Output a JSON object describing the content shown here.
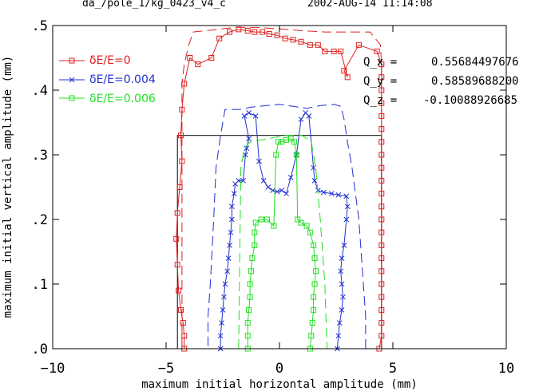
{
  "header": {
    "run_name": "da_/pole_1/kg_0423_v4_c",
    "timestamp": "2002-AUG-14  11:14:08"
  },
  "annotations": [
    {
      "label": "Q_x =",
      "value": "0.55684497676"
    },
    {
      "label": "Q_y =",
      "value": "0.58589688200"
    },
    {
      "label": "Q_z =",
      "value": "-0.10088926685"
    }
  ],
  "chart_data": {
    "type": "line",
    "xlabel": "maximum initial horizontal amplitude (mm)",
    "ylabel": "maximum initial vertical amplitude (mm)",
    "xlim": [
      -10,
      10
    ],
    "ylim": [
      0,
      0.5
    ],
    "x_ticks": [
      -10,
      -5,
      0,
      5,
      10
    ],
    "x_tick_labels": [
      "−10",
      "−5",
      "0",
      "5",
      "10"
    ],
    "y_ticks": [
      0,
      0.1,
      0.2,
      0.3,
      0.4,
      0.5
    ],
    "y_tick_labels": [
      ".0",
      ".1",
      ".2",
      ".3",
      ".4",
      ".5"
    ],
    "grid": false,
    "legend_position": "top-left",
    "series": [
      {
        "name": "δE/E=0",
        "color": "#e02020",
        "marker": "square",
        "points": [
          [
            4.4,
            0
          ],
          [
            4.5,
            0.02
          ],
          [
            4.5,
            0.04
          ],
          [
            4.5,
            0.06
          ],
          [
            4.5,
            0.08
          ],
          [
            4.5,
            0.1
          ],
          [
            4.5,
            0.12
          ],
          [
            4.5,
            0.14
          ],
          [
            4.5,
            0.16
          ],
          [
            4.5,
            0.18
          ],
          [
            4.5,
            0.2
          ],
          [
            4.5,
            0.22
          ],
          [
            4.5,
            0.24
          ],
          [
            4.5,
            0.26
          ],
          [
            4.5,
            0.28
          ],
          [
            4.5,
            0.3
          ],
          [
            4.5,
            0.32
          ],
          [
            4.5,
            0.34
          ],
          [
            4.5,
            0.36
          ],
          [
            4.5,
            0.38
          ],
          [
            4.5,
            0.4
          ],
          [
            4.5,
            0.42
          ],
          [
            4.5,
            0.44
          ],
          [
            4.3,
            0.46
          ],
          [
            3.5,
            0.47
          ],
          [
            2.85,
            0.43
          ],
          [
            3.0,
            0.42
          ],
          [
            2.7,
            0.46
          ],
          [
            2.4,
            0.46
          ],
          [
            2.0,
            0.46
          ],
          [
            1.7,
            0.47
          ],
          [
            1.35,
            0.47
          ],
          [
            0.95,
            0.475
          ],
          [
            0.6,
            0.478
          ],
          [
            0.25,
            0.48
          ],
          [
            -0.1,
            0.485
          ],
          [
            -0.45,
            0.487
          ],
          [
            -0.75,
            0.49
          ],
          [
            -1.1,
            0.49
          ],
          [
            -1.4,
            0.492
          ],
          [
            -1.8,
            0.494
          ],
          [
            -2.2,
            0.49
          ],
          [
            -2.65,
            0.48
          ],
          [
            -3.0,
            0.45
          ],
          [
            -3.6,
            0.44
          ],
          [
            -3.95,
            0.45
          ],
          [
            -4.2,
            0.41
          ],
          [
            -4.3,
            0.37
          ],
          [
            -4.35,
            0.33
          ],
          [
            -4.3,
            0.29
          ],
          [
            -4.4,
            0.25
          ],
          [
            -4.5,
            0.21
          ],
          [
            -4.55,
            0.17
          ],
          [
            -4.5,
            0.13
          ],
          [
            -4.45,
            0.09
          ],
          [
            -4.35,
            0.06
          ],
          [
            -4.25,
            0.04
          ],
          [
            -4.2,
            0.02
          ],
          [
            -4.2,
            0
          ]
        ],
        "dashed_envelope": [
          [
            4.5,
            0
          ],
          [
            4.5,
            0.2
          ],
          [
            4.5,
            0.44
          ],
          [
            4.45,
            0.47
          ],
          [
            4.0,
            0.49
          ],
          [
            3.0,
            0.49
          ],
          [
            2.0,
            0.49
          ],
          [
            1.0,
            0.492
          ],
          [
            0,
            0.495
          ],
          [
            -1.0,
            0.497
          ],
          [
            -2.0,
            0.497
          ],
          [
            -3.0,
            0.493
          ],
          [
            -3.8,
            0.49
          ],
          [
            -4.0,
            0.47
          ],
          [
            -4.2,
            0.44
          ],
          [
            -4.3,
            0.41
          ],
          [
            -4.3,
            0.2
          ],
          [
            -4.3,
            0
          ]
        ]
      },
      {
        "name": "δE/E=0.004",
        "color": "#2030d0",
        "marker": "x",
        "points": [
          [
            -2.6,
            0
          ],
          [
            -2.6,
            0.02
          ],
          [
            -2.55,
            0.04
          ],
          [
            -2.5,
            0.06
          ],
          [
            -2.45,
            0.08
          ],
          [
            -2.4,
            0.1
          ],
          [
            -2.3,
            0.12
          ],
          [
            -2.25,
            0.14
          ],
          [
            -2.2,
            0.16
          ],
          [
            -2.15,
            0.18
          ],
          [
            -2.1,
            0.2
          ],
          [
            -2.1,
            0.22
          ],
          [
            -2.0,
            0.24
          ],
          [
            -1.95,
            0.255
          ],
          [
            -1.8,
            0.26
          ],
          [
            -1.6,
            0.26
          ],
          [
            -1.5,
            0.3
          ],
          [
            -1.45,
            0.31
          ],
          [
            -1.35,
            0.325
          ],
          [
            -1.55,
            0.36
          ],
          [
            -1.35,
            0.365
          ],
          [
            -1.05,
            0.36
          ],
          [
            -0.9,
            0.29
          ],
          [
            -0.7,
            0.26
          ],
          [
            -0.5,
            0.25
          ],
          [
            -0.3,
            0.245
          ],
          [
            -0.1,
            0.243
          ],
          [
            0.1,
            0.245
          ],
          [
            0.3,
            0.24
          ],
          [
            0.5,
            0.265
          ],
          [
            0.75,
            0.3
          ],
          [
            0.95,
            0.355
          ],
          [
            1.15,
            0.365
          ],
          [
            1.3,
            0.36
          ],
          [
            1.5,
            0.28
          ],
          [
            1.55,
            0.26
          ],
          [
            1.7,
            0.245
          ],
          [
            1.95,
            0.242
          ],
          [
            2.3,
            0.24
          ],
          [
            2.6,
            0.238
          ],
          [
            2.95,
            0.236
          ],
          [
            3.0,
            0.22
          ],
          [
            2.95,
            0.2
          ],
          [
            2.85,
            0.16
          ],
          [
            2.75,
            0.14
          ],
          [
            2.7,
            0.12
          ],
          [
            2.75,
            0.1
          ],
          [
            2.8,
            0.08
          ],
          [
            2.75,
            0.06
          ],
          [
            2.65,
            0.04
          ],
          [
            2.6,
            0.02
          ],
          [
            2.55,
            0
          ]
        ],
        "dashed_envelope": [
          [
            3.8,
            0
          ],
          [
            3.8,
            0.05
          ],
          [
            3.5,
            0.2
          ],
          [
            3.2,
            0.28
          ],
          [
            3.0,
            0.32
          ],
          [
            2.85,
            0.355
          ],
          [
            2.7,
            0.375
          ],
          [
            2.4,
            0.378
          ],
          [
            1.8,
            0.376
          ],
          [
            1.2,
            0.372
          ],
          [
            0.6,
            0.375
          ],
          [
            0.0,
            0.378
          ],
          [
            -0.6,
            0.376
          ],
          [
            -1.2,
            0.374
          ],
          [
            -1.8,
            0.37
          ],
          [
            -2.4,
            0.37
          ],
          [
            -2.6,
            0.33
          ],
          [
            -2.8,
            0.28
          ],
          [
            -2.9,
            0.2
          ],
          [
            -3.05,
            0.1
          ],
          [
            -3.15,
            0.05
          ],
          [
            -3.15,
            0
          ]
        ]
      },
      {
        "name": "δE/E=0.006",
        "color": "#20e020",
        "marker": "square",
        "points": [
          [
            -1.4,
            0
          ],
          [
            -1.4,
            0.02
          ],
          [
            -1.4,
            0.04
          ],
          [
            -1.35,
            0.06
          ],
          [
            -1.3,
            0.08
          ],
          [
            -1.3,
            0.1
          ],
          [
            -1.25,
            0.12
          ],
          [
            -1.2,
            0.14
          ],
          [
            -1.1,
            0.16
          ],
          [
            -1.1,
            0.18
          ],
          [
            -1.05,
            0.195
          ],
          [
            -0.8,
            0.2
          ],
          [
            -0.55,
            0.2
          ],
          [
            -0.25,
            0.19
          ],
          [
            -0.15,
            0.3
          ],
          [
            -0.05,
            0.32
          ],
          [
            0.1,
            0.32
          ],
          [
            0.3,
            0.323
          ],
          [
            0.5,
            0.325
          ],
          [
            0.65,
            0.32
          ],
          [
            0.75,
            0.3
          ],
          [
            0.8,
            0.2
          ],
          [
            0.95,
            0.195
          ],
          [
            1.2,
            0.19
          ],
          [
            1.35,
            0.18
          ],
          [
            1.5,
            0.16
          ],
          [
            1.55,
            0.14
          ],
          [
            1.6,
            0.12
          ],
          [
            1.55,
            0.1
          ],
          [
            1.5,
            0.08
          ],
          [
            1.5,
            0.06
          ],
          [
            1.45,
            0.04
          ],
          [
            1.4,
            0.02
          ],
          [
            1.35,
            0
          ]
        ],
        "dashed_envelope": [
          [
            -1.8,
            0
          ],
          [
            -1.75,
            0.15
          ],
          [
            -1.7,
            0.28
          ],
          [
            -1.55,
            0.31
          ],
          [
            -1.3,
            0.32
          ],
          [
            -0.5,
            0.325
          ],
          [
            0.3,
            0.33
          ],
          [
            1.0,
            0.33
          ],
          [
            1.4,
            0.32
          ],
          [
            1.6,
            0.28
          ],
          [
            1.8,
            0.2
          ],
          [
            2.0,
            0.1
          ],
          [
            2.1,
            0
          ]
        ]
      }
    ],
    "reference_box": {
      "x": [
        -4.5,
        4.5
      ],
      "y": [
        0,
        0.33
      ],
      "color": "#000000"
    }
  }
}
